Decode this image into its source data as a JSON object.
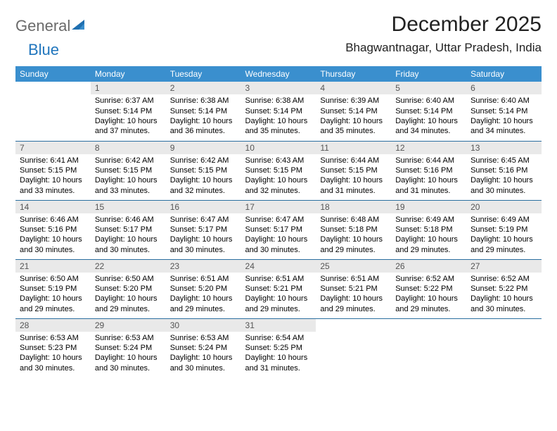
{
  "logo": {
    "word1": "General",
    "word2": "Blue"
  },
  "title": "December 2025",
  "location": "Bhagwantnagar, Uttar Pradesh, India",
  "colors": {
    "header_bg": "#3a8fce",
    "header_text": "#ffffff",
    "daynum_bg": "#e9e9e9",
    "row_border": "#2b6fa0",
    "logo_gray": "#6a6a6a",
    "logo_blue": "#2176bd"
  },
  "day_headers": [
    "Sunday",
    "Monday",
    "Tuesday",
    "Wednesday",
    "Thursday",
    "Friday",
    "Saturday"
  ],
  "weeks": [
    [
      {
        "n": "",
        "sr": "",
        "ss": "",
        "dl": ""
      },
      {
        "n": "1",
        "sr": "Sunrise: 6:37 AM",
        "ss": "Sunset: 5:14 PM",
        "dl": "Daylight: 10 hours and 37 minutes."
      },
      {
        "n": "2",
        "sr": "Sunrise: 6:38 AM",
        "ss": "Sunset: 5:14 PM",
        "dl": "Daylight: 10 hours and 36 minutes."
      },
      {
        "n": "3",
        "sr": "Sunrise: 6:38 AM",
        "ss": "Sunset: 5:14 PM",
        "dl": "Daylight: 10 hours and 35 minutes."
      },
      {
        "n": "4",
        "sr": "Sunrise: 6:39 AM",
        "ss": "Sunset: 5:14 PM",
        "dl": "Daylight: 10 hours and 35 minutes."
      },
      {
        "n": "5",
        "sr": "Sunrise: 6:40 AM",
        "ss": "Sunset: 5:14 PM",
        "dl": "Daylight: 10 hours and 34 minutes."
      },
      {
        "n": "6",
        "sr": "Sunrise: 6:40 AM",
        "ss": "Sunset: 5:14 PM",
        "dl": "Daylight: 10 hours and 34 minutes."
      }
    ],
    [
      {
        "n": "7",
        "sr": "Sunrise: 6:41 AM",
        "ss": "Sunset: 5:15 PM",
        "dl": "Daylight: 10 hours and 33 minutes."
      },
      {
        "n": "8",
        "sr": "Sunrise: 6:42 AM",
        "ss": "Sunset: 5:15 PM",
        "dl": "Daylight: 10 hours and 33 minutes."
      },
      {
        "n": "9",
        "sr": "Sunrise: 6:42 AM",
        "ss": "Sunset: 5:15 PM",
        "dl": "Daylight: 10 hours and 32 minutes."
      },
      {
        "n": "10",
        "sr": "Sunrise: 6:43 AM",
        "ss": "Sunset: 5:15 PM",
        "dl": "Daylight: 10 hours and 32 minutes."
      },
      {
        "n": "11",
        "sr": "Sunrise: 6:44 AM",
        "ss": "Sunset: 5:15 PM",
        "dl": "Daylight: 10 hours and 31 minutes."
      },
      {
        "n": "12",
        "sr": "Sunrise: 6:44 AM",
        "ss": "Sunset: 5:16 PM",
        "dl": "Daylight: 10 hours and 31 minutes."
      },
      {
        "n": "13",
        "sr": "Sunrise: 6:45 AM",
        "ss": "Sunset: 5:16 PM",
        "dl": "Daylight: 10 hours and 30 minutes."
      }
    ],
    [
      {
        "n": "14",
        "sr": "Sunrise: 6:46 AM",
        "ss": "Sunset: 5:16 PM",
        "dl": "Daylight: 10 hours and 30 minutes."
      },
      {
        "n": "15",
        "sr": "Sunrise: 6:46 AM",
        "ss": "Sunset: 5:17 PM",
        "dl": "Daylight: 10 hours and 30 minutes."
      },
      {
        "n": "16",
        "sr": "Sunrise: 6:47 AM",
        "ss": "Sunset: 5:17 PM",
        "dl": "Daylight: 10 hours and 30 minutes."
      },
      {
        "n": "17",
        "sr": "Sunrise: 6:47 AM",
        "ss": "Sunset: 5:17 PM",
        "dl": "Daylight: 10 hours and 30 minutes."
      },
      {
        "n": "18",
        "sr": "Sunrise: 6:48 AM",
        "ss": "Sunset: 5:18 PM",
        "dl": "Daylight: 10 hours and 29 minutes."
      },
      {
        "n": "19",
        "sr": "Sunrise: 6:49 AM",
        "ss": "Sunset: 5:18 PM",
        "dl": "Daylight: 10 hours and 29 minutes."
      },
      {
        "n": "20",
        "sr": "Sunrise: 6:49 AM",
        "ss": "Sunset: 5:19 PM",
        "dl": "Daylight: 10 hours and 29 minutes."
      }
    ],
    [
      {
        "n": "21",
        "sr": "Sunrise: 6:50 AM",
        "ss": "Sunset: 5:19 PM",
        "dl": "Daylight: 10 hours and 29 minutes."
      },
      {
        "n": "22",
        "sr": "Sunrise: 6:50 AM",
        "ss": "Sunset: 5:20 PM",
        "dl": "Daylight: 10 hours and 29 minutes."
      },
      {
        "n": "23",
        "sr": "Sunrise: 6:51 AM",
        "ss": "Sunset: 5:20 PM",
        "dl": "Daylight: 10 hours and 29 minutes."
      },
      {
        "n": "24",
        "sr": "Sunrise: 6:51 AM",
        "ss": "Sunset: 5:21 PM",
        "dl": "Daylight: 10 hours and 29 minutes."
      },
      {
        "n": "25",
        "sr": "Sunrise: 6:51 AM",
        "ss": "Sunset: 5:21 PM",
        "dl": "Daylight: 10 hours and 29 minutes."
      },
      {
        "n": "26",
        "sr": "Sunrise: 6:52 AM",
        "ss": "Sunset: 5:22 PM",
        "dl": "Daylight: 10 hours and 29 minutes."
      },
      {
        "n": "27",
        "sr": "Sunrise: 6:52 AM",
        "ss": "Sunset: 5:22 PM",
        "dl": "Daylight: 10 hours and 30 minutes."
      }
    ],
    [
      {
        "n": "28",
        "sr": "Sunrise: 6:53 AM",
        "ss": "Sunset: 5:23 PM",
        "dl": "Daylight: 10 hours and 30 minutes."
      },
      {
        "n": "29",
        "sr": "Sunrise: 6:53 AM",
        "ss": "Sunset: 5:24 PM",
        "dl": "Daylight: 10 hours and 30 minutes."
      },
      {
        "n": "30",
        "sr": "Sunrise: 6:53 AM",
        "ss": "Sunset: 5:24 PM",
        "dl": "Daylight: 10 hours and 30 minutes."
      },
      {
        "n": "31",
        "sr": "Sunrise: 6:54 AM",
        "ss": "Sunset: 5:25 PM",
        "dl": "Daylight: 10 hours and 31 minutes."
      },
      {
        "n": "",
        "sr": "",
        "ss": "",
        "dl": ""
      },
      {
        "n": "",
        "sr": "",
        "ss": "",
        "dl": ""
      },
      {
        "n": "",
        "sr": "",
        "ss": "",
        "dl": ""
      }
    ]
  ]
}
